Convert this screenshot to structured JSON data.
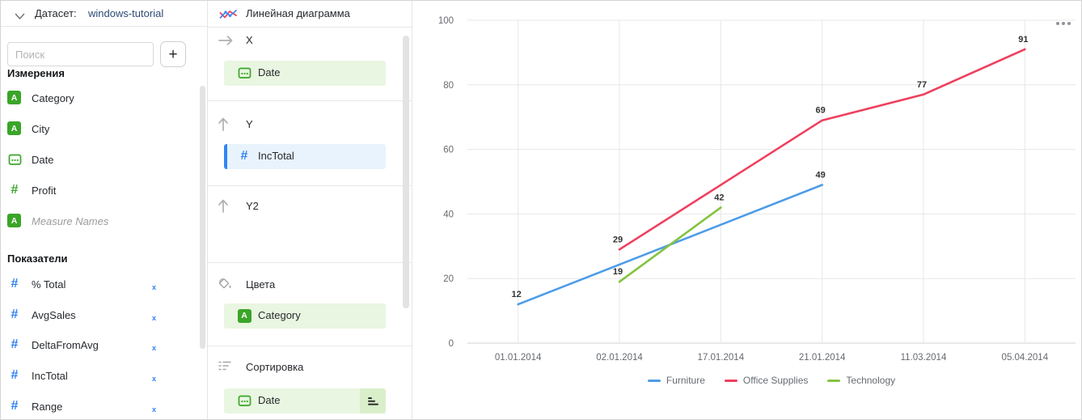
{
  "dataset_header": {
    "label": "Датасет:",
    "name": "windows-tutorial"
  },
  "fields_panel": {
    "search_placeholder": "Поиск",
    "add_button": "+",
    "dimensions": {
      "title": "Измерения",
      "items": [
        {
          "label": "Category",
          "type": "string"
        },
        {
          "label": "City",
          "type": "string"
        },
        {
          "label": "Date",
          "type": "date"
        },
        {
          "label": "Profit",
          "type": "number"
        },
        {
          "label": "Measure Names",
          "type": "string"
        }
      ]
    },
    "measures": {
      "title": "Показатели",
      "items": [
        {
          "label": "% Total",
          "formula": "Fx"
        },
        {
          "label": "AvgSales",
          "formula": "Fx"
        },
        {
          "label": "DeltaFromAvg",
          "formula": "Fx"
        },
        {
          "label": "IncTotal",
          "formula": "Fx"
        },
        {
          "label": "Range",
          "formula": "Fx"
        }
      ]
    }
  },
  "builder_panel": {
    "chart_type": "Линейная диаграмма",
    "sections": [
      {
        "label": "X",
        "icon": "arrow-right-icon",
        "fields": [
          {
            "label": "Date",
            "type": "date"
          }
        ]
      },
      {
        "label": "Y",
        "icon": "arrow-up-icon",
        "fields": [
          {
            "label": "IncTotal",
            "type": "number",
            "selected": true
          }
        ]
      },
      {
        "label": "Y2",
        "icon": "arrow-up-icon",
        "fields": []
      },
      {
        "label": "Цвета",
        "icon": "paint-bucket-icon",
        "fields": [
          {
            "label": "Category",
            "type": "string"
          }
        ]
      },
      {
        "label": "Сортировка",
        "icon": "sort-icon",
        "fields": [
          {
            "label": "Date",
            "type": "date",
            "sort_button": true
          }
        ]
      }
    ]
  },
  "chart_data": {
    "type": "line",
    "categories": [
      "01.01.2014",
      "02.01.2014",
      "17.01.2014",
      "21.01.2014",
      "11.03.2014",
      "05.04.2014"
    ],
    "series": [
      {
        "name": "Furniture",
        "color": "#4d9ce8",
        "points": [
          [
            0,
            12
          ],
          [
            3,
            49
          ]
        ]
      },
      {
        "name": "Office Supplies",
        "color": "#ef3f5e",
        "points": [
          [
            1,
            29
          ],
          [
            3,
            69
          ],
          [
            4,
            77
          ],
          [
            5,
            91
          ]
        ]
      },
      {
        "name": "Technology",
        "color": "#84c340",
        "points": [
          [
            1,
            19
          ],
          [
            2,
            42
          ]
        ]
      }
    ],
    "ylim": [
      0,
      100
    ],
    "yticks": [
      0,
      20,
      40,
      60,
      80,
      100
    ],
    "grid": true,
    "data_labels": true,
    "legend_position": "bottom",
    "colors": {
      "grid": "#e7e7e7",
      "axis_line": "#d3d3d3",
      "tick_label": "#66696f",
      "data_label": "#333333"
    }
  }
}
